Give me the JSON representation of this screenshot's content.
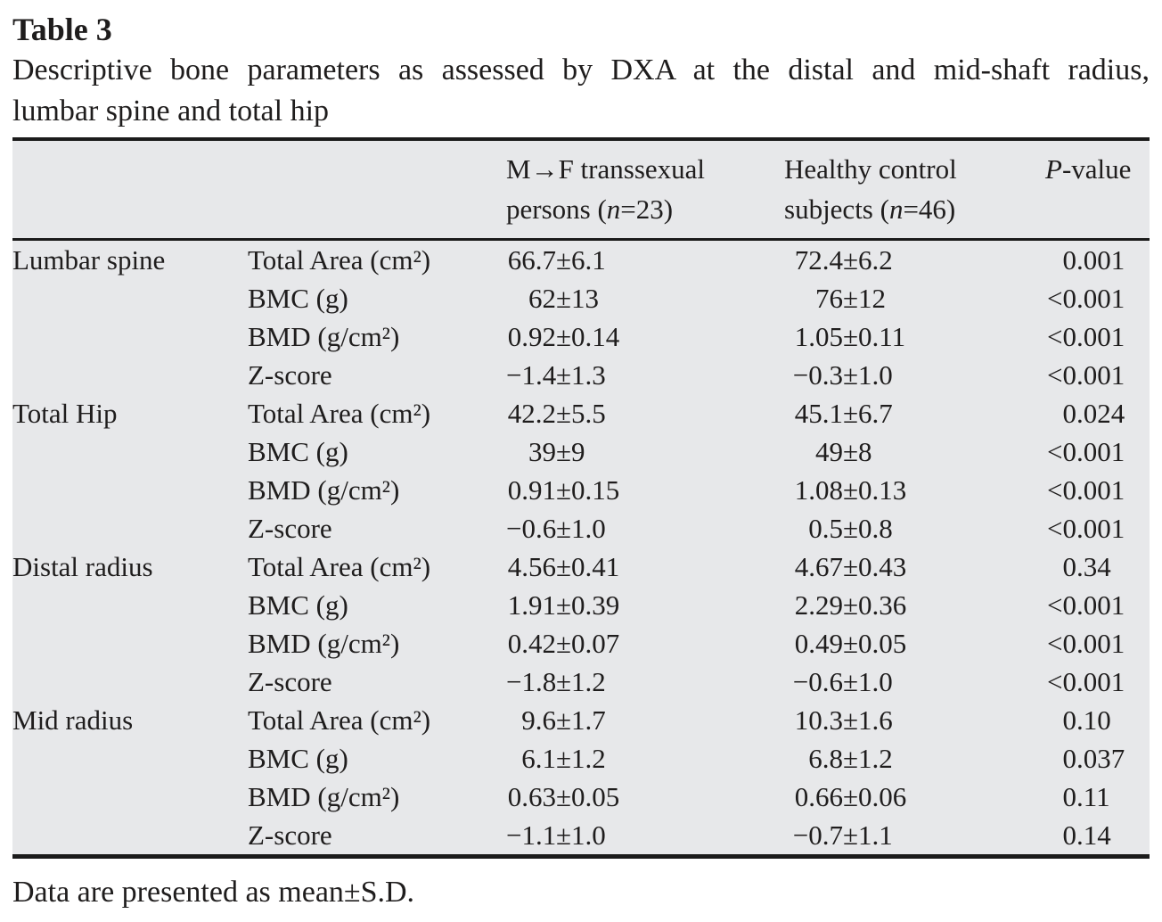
{
  "title": "Table 3",
  "caption_line1": "Descriptive bone parameters as assessed by DXA at the distal and mid-shaft radius,",
  "caption_line2": "lumbar spine and total hip",
  "footnote": "Data are presented as mean±S.D.",
  "colors": {
    "table_background": "#e7e8ea",
    "text": "#1f1d1d",
    "rule": "#1b1b1b"
  },
  "chart_data": {
    "type": "table",
    "header": {
      "mf_line1": "M→F transsexual",
      "mf_line2_pre": "persons (",
      "mf_line2_post": "=23)",
      "control_line1": "Healthy control",
      "control_line2_pre": "subjects (",
      "control_line2_post": "=46)",
      "n_symbol": "n",
      "p_italic": "P",
      "p_rest": "-value"
    },
    "sections": [
      {
        "region": "Lumbar spine",
        "rows": [
          {
            "param": "Total Area (cm²)",
            "mf": "66.7±6.1",
            "control": "72.4±6.2",
            "p": "0.001"
          },
          {
            "param": "BMC (g)",
            "mf": "62±13",
            "control": "76±12",
            "p": "<0.001"
          },
          {
            "param": "BMD (g/cm²)",
            "mf": "0.92±0.14",
            "control": "1.05±0.11",
            "p": "<0.001"
          },
          {
            "param": "Z-score",
            "mf": "−1.4±1.3",
            "control": "−0.3±1.0",
            "p": "<0.001"
          }
        ]
      },
      {
        "region": "Total Hip",
        "rows": [
          {
            "param": "Total Area (cm²)",
            "mf": "42.2±5.5",
            "control": "45.1±6.7",
            "p": "0.024"
          },
          {
            "param": "BMC (g)",
            "mf": "39±9",
            "control": "49±8",
            "p": "<0.001"
          },
          {
            "param": "BMD (g/cm²)",
            "mf": "0.91±0.15",
            "control": "1.08±0.13",
            "p": "<0.001"
          },
          {
            "param": "Z-score",
            "mf": "−0.6±1.0",
            "control": "0.5±0.8",
            "p": "<0.001"
          }
        ]
      },
      {
        "region": "Distal radius",
        "rows": [
          {
            "param": "Total Area (cm²)",
            "mf": "4.56±0.41",
            "control": "4.67±0.43",
            "p": "0.34"
          },
          {
            "param": "BMC (g)",
            "mf": "1.91±0.39",
            "control": "2.29±0.36",
            "p": "<0.001"
          },
          {
            "param": "BMD (g/cm²)",
            "mf": "0.42±0.07",
            "control": "0.49±0.05",
            "p": "<0.001"
          },
          {
            "param": "Z-score",
            "mf": "−1.8±1.2",
            "control": "−0.6±1.0",
            "p": "<0.001"
          }
        ]
      },
      {
        "region": "Mid radius",
        "rows": [
          {
            "param": "Total Area (cm²)",
            "mf": "9.6±1.7",
            "control": "10.3±1.6",
            "p": "0.10"
          },
          {
            "param": "BMC (g)",
            "mf": "6.1±1.2",
            "control": "6.8±1.2",
            "p": "0.037"
          },
          {
            "param": "BMD (g/cm²)",
            "mf": "0.63±0.05",
            "control": "0.66±0.06",
            "p": "0.11"
          },
          {
            "param": "Z-score",
            "mf": "−1.1±1.0",
            "control": "−0.7±1.1",
            "p": "0.14"
          }
        ]
      }
    ]
  }
}
